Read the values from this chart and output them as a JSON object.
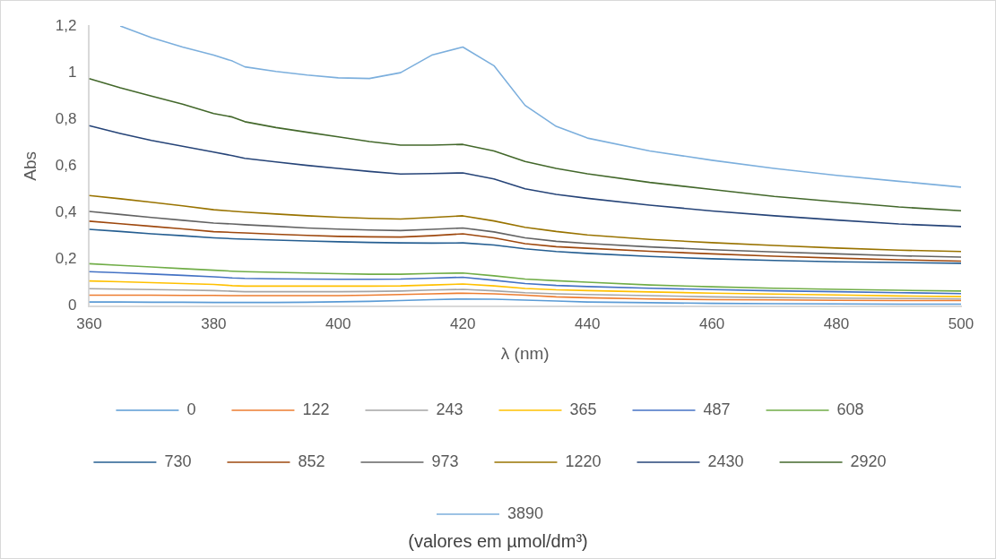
{
  "chart_data": {
    "type": "line",
    "xlabel": "λ (nm)",
    "ylabel": "Abs",
    "legend": "bottom",
    "marker": "none",
    "line_style": "solid",
    "annotations": [
      "(valores em µmol/dm³)"
    ],
    "xlim": [
      360,
      500
    ],
    "xticks": [
      360,
      380,
      400,
      420,
      440,
      460,
      480,
      500
    ],
    "ylim": [
      0,
      1.2
    ],
    "yticks": [
      0,
      {
        "value": 0.2,
        "label": "0,2"
      },
      {
        "value": 0.4,
        "label": "0,4"
      },
      {
        "value": 0.6,
        "label": "0,6"
      },
      {
        "value": 0.8,
        "label": "0,8"
      },
      1,
      {
        "value": 1.2,
        "label": "1,2"
      }
    ],
    "x": [
      360,
      365,
      370,
      375,
      380,
      383,
      385,
      390,
      395,
      400,
      405,
      410,
      415,
      420,
      425,
      430,
      435,
      440,
      450,
      460,
      470,
      480,
      490,
      500
    ],
    "series": [
      {
        "name": "0",
        "color": "#5b9bd5",
        "values": [
          0.018,
          0.018,
          0.017,
          0.017,
          0.016,
          0.016,
          0.016,
          0.016,
          0.017,
          0.019,
          0.021,
          0.024,
          0.028,
          0.031,
          0.03,
          0.026,
          0.022,
          0.018,
          0.015,
          0.012,
          0.011,
          0.01,
          0.009,
          0.009
        ]
      },
      {
        "name": "122",
        "color": "#ed7d31",
        "values": [
          0.047,
          0.047,
          0.047,
          0.046,
          0.046,
          0.045,
          0.045,
          0.045,
          0.045,
          0.045,
          0.047,
          0.05,
          0.053,
          0.056,
          0.053,
          0.047,
          0.04,
          0.036,
          0.031,
          0.028,
          0.027,
          0.025,
          0.024,
          0.024
        ]
      },
      {
        "name": "243",
        "color": "#a5a5a5",
        "values": [
          0.075,
          0.073,
          0.071,
          0.069,
          0.067,
          0.064,
          0.062,
          0.062,
          0.062,
          0.062,
          0.063,
          0.065,
          0.069,
          0.072,
          0.066,
          0.058,
          0.053,
          0.05,
          0.045,
          0.04,
          0.037,
          0.035,
          0.033,
          0.031
        ]
      },
      {
        "name": "365",
        "color": "#ffc000",
        "values": [
          0.108,
          0.105,
          0.101,
          0.097,
          0.093,
          0.088,
          0.086,
          0.086,
          0.086,
          0.086,
          0.086,
          0.087,
          0.091,
          0.095,
          0.087,
          0.076,
          0.07,
          0.067,
          0.061,
          0.056,
          0.052,
          0.048,
          0.044,
          0.041
        ]
      },
      {
        "name": "487",
        "color": "#4472c4",
        "values": [
          0.148,
          0.143,
          0.138,
          0.132,
          0.126,
          0.121,
          0.119,
          0.117,
          0.116,
          0.115,
          0.115,
          0.116,
          0.12,
          0.124,
          0.111,
          0.097,
          0.089,
          0.084,
          0.077,
          0.071,
          0.066,
          0.062,
          0.058,
          0.054
        ]
      },
      {
        "name": "608",
        "color": "#70ad47",
        "values": [
          0.182,
          0.175,
          0.168,
          0.161,
          0.154,
          0.15,
          0.148,
          0.145,
          0.142,
          0.139,
          0.137,
          0.137,
          0.14,
          0.142,
          0.13,
          0.116,
          0.109,
          0.103,
          0.091,
          0.083,
          0.077,
          0.072,
          0.068,
          0.065
        ]
      },
      {
        "name": "730",
        "color": "#255e91",
        "values": [
          0.329,
          0.32,
          0.31,
          0.302,
          0.293,
          0.289,
          0.287,
          0.283,
          0.279,
          0.276,
          0.273,
          0.271,
          0.27,
          0.271,
          0.262,
          0.246,
          0.234,
          0.226,
          0.213,
          0.203,
          0.196,
          0.19,
          0.187,
          0.184
        ]
      },
      {
        "name": "852",
        "color": "#9e480e",
        "values": [
          0.364,
          0.353,
          0.342,
          0.331,
          0.319,
          0.316,
          0.314,
          0.308,
          0.303,
          0.299,
          0.297,
          0.296,
          0.302,
          0.31,
          0.293,
          0.268,
          0.255,
          0.248,
          0.235,
          0.224,
          0.214,
          0.206,
          0.199,
          0.193
        ]
      },
      {
        "name": "973",
        "color": "#636363",
        "values": [
          0.406,
          0.393,
          0.38,
          0.368,
          0.356,
          0.352,
          0.349,
          0.342,
          0.335,
          0.33,
          0.326,
          0.324,
          0.329,
          0.335,
          0.318,
          0.293,
          0.278,
          0.269,
          0.254,
          0.242,
          0.232,
          0.224,
          0.216,
          0.21
        ]
      },
      {
        "name": "1220",
        "color": "#997300",
        "values": [
          0.474,
          0.46,
          0.445,
          0.43,
          0.413,
          0.407,
          0.403,
          0.395,
          0.387,
          0.381,
          0.376,
          0.373,
          0.38,
          0.387,
          0.365,
          0.338,
          0.32,
          0.305,
          0.286,
          0.272,
          0.26,
          0.249,
          0.24,
          0.234
        ]
      },
      {
        "name": "2430",
        "color": "#264478",
        "values": [
          0.773,
          0.74,
          0.71,
          0.685,
          0.66,
          0.645,
          0.633,
          0.618,
          0.603,
          0.59,
          0.577,
          0.566,
          0.568,
          0.571,
          0.545,
          0.503,
          0.479,
          0.462,
          0.433,
          0.408,
          0.387,
          0.369,
          0.352,
          0.341
        ]
      },
      {
        "name": "2920",
        "color": "#43682b",
        "values": [
          0.975,
          0.935,
          0.9,
          0.865,
          0.825,
          0.81,
          0.79,
          0.765,
          0.745,
          0.725,
          0.705,
          0.69,
          0.69,
          0.693,
          0.665,
          0.62,
          0.59,
          0.567,
          0.53,
          0.5,
          0.47,
          0.447,
          0.425,
          0.409
        ]
      },
      {
        "name": "3890",
        "color": "#7cafdd",
        "values": [
          null,
          1.2,
          1.15,
          1.11,
          1.075,
          1.05,
          1.025,
          1.005,
          0.99,
          0.978,
          0.975,
          1.0,
          1.075,
          1.11,
          1.03,
          0.86,
          0.77,
          0.72,
          0.665,
          0.625,
          0.59,
          0.56,
          0.535,
          0.51
        ]
      }
    ]
  }
}
